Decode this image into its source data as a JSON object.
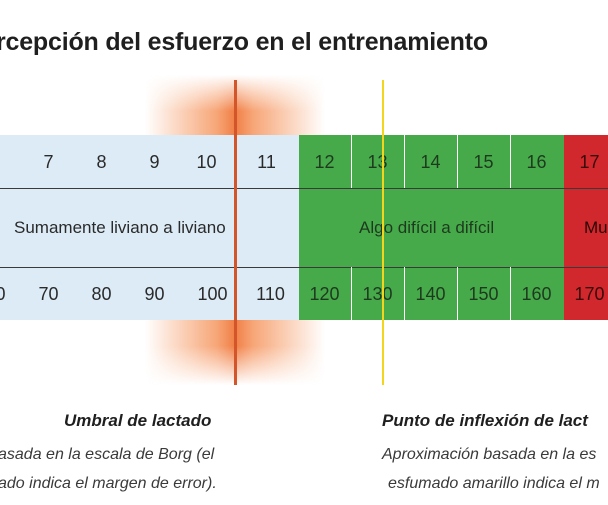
{
  "title": "rcepción del esfuerzo en el entrenamiento",
  "scale": {
    "borg": [
      "7",
      "8",
      "9",
      "10",
      "11",
      "12",
      "13",
      "14",
      "15",
      "16",
      "17"
    ],
    "heart_rate_partial_left": "0",
    "heart_rate": [
      "70",
      "80",
      "90",
      "100",
      "110",
      "120",
      "130",
      "140",
      "150",
      "160",
      "170"
    ]
  },
  "zones": [
    {
      "label": "Sumamente liviano a liviano",
      "color": "#dcebf6"
    },
    {
      "label": "Algo difícil a difícil",
      "color": "#47aa4a"
    },
    {
      "label": "Mu",
      "color": "#d0282c"
    }
  ],
  "markers": {
    "lactate": {
      "heading": "Umbral de lactado",
      "caption_line1": "asada en la escala de Borg (el",
      "caption_line2": "ado indica el margen de error).",
      "color": "#d2562a"
    },
    "inflection": {
      "heading": "Punto de inflexión de lact",
      "caption_line1": "Aproximación basada en la es",
      "caption_line2": "esfumado amarillo indica el m",
      "color": "#f2d51c"
    }
  }
}
